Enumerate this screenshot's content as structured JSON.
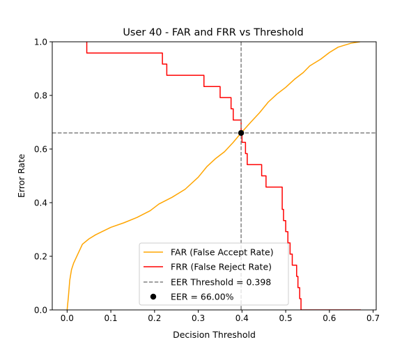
{
  "chart_data": {
    "type": "line",
    "title": "User 40 - FAR and FRR vs Threshold",
    "xlabel": "Decision Threshold",
    "ylabel": "Error Rate",
    "xlim": [
      -0.034,
      0.707
    ],
    "ylim": [
      0.0,
      1.0
    ],
    "xticks": [
      0.0,
      0.1,
      0.2,
      0.3,
      0.4,
      0.5,
      0.6,
      0.7
    ],
    "xtick_labels": [
      "0.0",
      "0.1",
      "0.2",
      "0.3",
      "0.4",
      "0.5",
      "0.6",
      "0.7"
    ],
    "yticks": [
      0.0,
      0.2,
      0.4,
      0.6,
      0.8,
      1.0
    ],
    "ytick_labels": [
      "0.0",
      "0.2",
      "0.4",
      "0.6",
      "0.8",
      "1.0"
    ],
    "grid": false,
    "legend_position": "lower-center",
    "series": [
      {
        "name": "FAR (False Accept Rate)",
        "color": "#ffa500",
        "style": "line",
        "points": [
          [
            0.0,
            0.0
          ],
          [
            0.003,
            0.05
          ],
          [
            0.006,
            0.11
          ],
          [
            0.01,
            0.15
          ],
          [
            0.015,
            0.175
          ],
          [
            0.025,
            0.21
          ],
          [
            0.035,
            0.245
          ],
          [
            0.05,
            0.265
          ],
          [
            0.065,
            0.28
          ],
          [
            0.08,
            0.292
          ],
          [
            0.1,
            0.308
          ],
          [
            0.13,
            0.325
          ],
          [
            0.16,
            0.345
          ],
          [
            0.19,
            0.37
          ],
          [
            0.21,
            0.395
          ],
          [
            0.24,
            0.42
          ],
          [
            0.27,
            0.45
          ],
          [
            0.3,
            0.495
          ],
          [
            0.32,
            0.535
          ],
          [
            0.34,
            0.565
          ],
          [
            0.36,
            0.59
          ],
          [
            0.38,
            0.625
          ],
          [
            0.398,
            0.66
          ],
          [
            0.42,
            0.7
          ],
          [
            0.44,
            0.735
          ],
          [
            0.46,
            0.775
          ],
          [
            0.48,
            0.805
          ],
          [
            0.5,
            0.83
          ],
          [
            0.52,
            0.86
          ],
          [
            0.54,
            0.885
          ],
          [
            0.555,
            0.91
          ],
          [
            0.58,
            0.935
          ],
          [
            0.6,
            0.96
          ],
          [
            0.62,
            0.98
          ],
          [
            0.65,
            0.995
          ],
          [
            0.67,
            1.0
          ]
        ]
      },
      {
        "name": "FRR (False Reject Rate)",
        "color": "#ff0000",
        "style": "step",
        "points": [
          [
            0.045,
            1.0
          ],
          [
            0.045,
            0.958
          ],
          [
            0.218,
            0.958
          ],
          [
            0.218,
            0.917
          ],
          [
            0.228,
            0.917
          ],
          [
            0.228,
            0.875
          ],
          [
            0.313,
            0.875
          ],
          [
            0.313,
            0.833
          ],
          [
            0.35,
            0.833
          ],
          [
            0.35,
            0.792
          ],
          [
            0.375,
            0.792
          ],
          [
            0.375,
            0.75
          ],
          [
            0.38,
            0.75
          ],
          [
            0.38,
            0.708
          ],
          [
            0.398,
            0.708
          ],
          [
            0.398,
            0.667
          ],
          [
            0.4,
            0.667
          ],
          [
            0.4,
            0.625
          ],
          [
            0.408,
            0.625
          ],
          [
            0.408,
            0.583
          ],
          [
            0.412,
            0.583
          ],
          [
            0.412,
            0.542
          ],
          [
            0.445,
            0.542
          ],
          [
            0.445,
            0.5
          ],
          [
            0.455,
            0.5
          ],
          [
            0.455,
            0.458
          ],
          [
            0.492,
            0.458
          ],
          [
            0.492,
            0.375
          ],
          [
            0.495,
            0.375
          ],
          [
            0.495,
            0.333
          ],
          [
            0.5,
            0.333
          ],
          [
            0.5,
            0.292
          ],
          [
            0.505,
            0.292
          ],
          [
            0.505,
            0.25
          ],
          [
            0.51,
            0.25
          ],
          [
            0.51,
            0.208
          ],
          [
            0.515,
            0.208
          ],
          [
            0.515,
            0.167
          ],
          [
            0.525,
            0.167
          ],
          [
            0.525,
            0.125
          ],
          [
            0.528,
            0.125
          ],
          [
            0.528,
            0.083
          ],
          [
            0.532,
            0.083
          ],
          [
            0.532,
            0.042
          ],
          [
            0.535,
            0.042
          ],
          [
            0.535,
            0.0
          ],
          [
            0.672,
            0.0
          ]
        ]
      },
      {
        "name": "EER Threshold = 0.398",
        "color": "#808080",
        "style": "dashed-crosshair",
        "x": 0.398,
        "y": 0.66
      },
      {
        "name": "EER = 66.00%",
        "color": "#000000",
        "style": "marker",
        "x": 0.398,
        "y": 0.66
      }
    ]
  }
}
